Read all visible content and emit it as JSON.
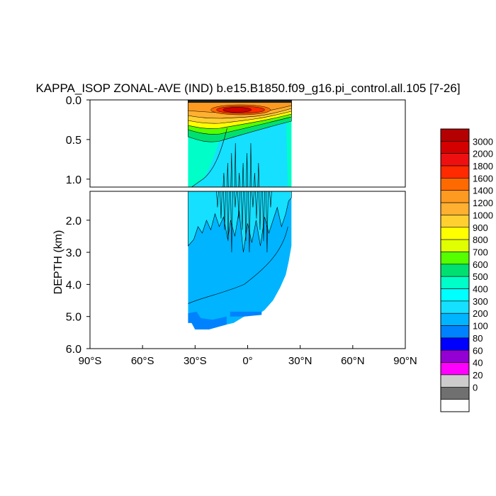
{
  "chart_data": {
    "type": "heatmap",
    "title": "KAPPA_ISOP ZONAL-AVE (IND) b.e15.B1850.f09_g16.pi_control.all.105 [7-26]",
    "ylabel": "DEPTH (km)",
    "xlabel": "",
    "x_ticks": [
      "90°S",
      "60°S",
      "30°S",
      "0°",
      "30°N",
      "60°N",
      "90°N"
    ],
    "x_tick_values": [
      -90,
      -60,
      -30,
      0,
      30,
      60,
      90
    ],
    "upper_panel": {
      "ylim": [
        0.0,
        1.1
      ],
      "y_ticks": [
        "0.0",
        "0.5",
        "1.0"
      ],
      "y_tick_values": [
        0.0,
        0.5,
        1.0
      ]
    },
    "lower_panel": {
      "ylim": [
        1.1,
        6.0
      ],
      "y_ticks": [
        "2.0",
        "3.0",
        "4.0",
        "5.0",
        "6.0"
      ],
      "y_tick_values": [
        2.0,
        3.0,
        4.0,
        5.0,
        6.0
      ]
    },
    "data_extent": {
      "lat_min": -34,
      "lat_max": 25,
      "max_depth_km": 5.4
    },
    "colorbar": {
      "labels": [
        "3000",
        "2000",
        "1800",
        "1600",
        "1400",
        "1200",
        "1000",
        "900",
        "800",
        "700",
        "600",
        "500",
        "400",
        "300",
        "200",
        "100",
        "80",
        "60",
        "40",
        "20",
        "0"
      ],
      "colors": [
        "#b40000",
        "#d40000",
        "#ee1010",
        "#ff2a00",
        "#ff6a00",
        "#ff9a20",
        "#ffb030",
        "#ffd030",
        "#ffff00",
        "#e0ff00",
        "#55ff00",
        "#00e070",
        "#00ffc8",
        "#00ffff",
        "#15e0ff",
        "#00b4ff",
        "#0082ff",
        "#0000ff",
        "#9400d3",
        "#ff00ff",
        "#cccccc",
        "#707070",
        "#ffffff"
      ]
    }
  }
}
